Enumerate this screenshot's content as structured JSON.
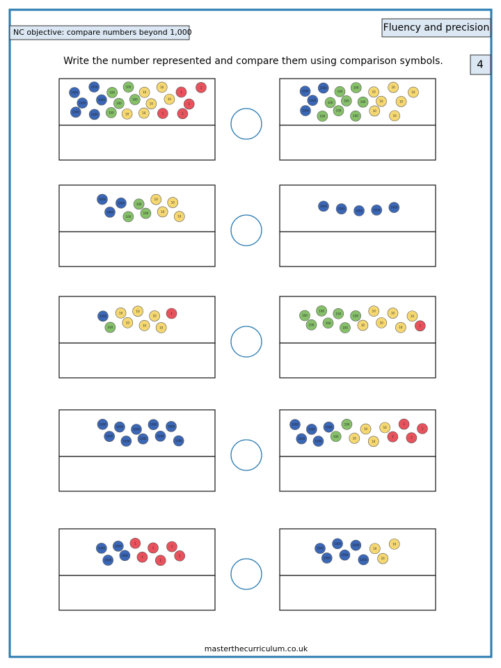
{
  "header": {
    "objective": "NC objective: compare numbers beyond 1,000",
    "section": "Fluency and precision",
    "page_number": "4"
  },
  "instruction": "Write the number represented and compare them using comparison symbols.",
  "questions": [
    {
      "left": {
        "counters": [
          1000,
          1000,
          1000,
          1000,
          1000,
          1000,
          100,
          100,
          100,
          100,
          100,
          10,
          10,
          10,
          10,
          10,
          10,
          1,
          1,
          1,
          1,
          1
        ]
      },
      "right": {
        "counters": [
          1000,
          1000,
          1000,
          1000,
          100,
          100,
          100,
          100,
          100,
          100,
          100,
          100,
          10,
          10,
          10,
          10,
          10,
          10,
          10
        ]
      }
    },
    {
      "left": {
        "counters": [
          1000,
          1000,
          1000,
          100,
          100,
          100,
          10,
          10,
          10,
          10
        ]
      },
      "right": {
        "counters": [
          1000,
          1000,
          1000,
          1000,
          1000
        ]
      }
    },
    {
      "left": {
        "counters": [
          1000,
          100,
          10,
          10,
          10,
          10,
          10,
          10,
          1
        ]
      },
      "right": {
        "counters": [
          100,
          100,
          100,
          100,
          100,
          100,
          100,
          10,
          10,
          10,
          10,
          10,
          10,
          1
        ]
      }
    },
    {
      "left": {
        "counters": [
          1000,
          1000,
          1000,
          1000,
          1000,
          1000,
          1000,
          1000,
          1000,
          1000
        ]
      },
      "right": {
        "counters": [
          1000,
          1000,
          1000,
          1000,
          1000,
          100,
          100,
          10,
          10,
          10,
          10,
          1,
          1,
          1,
          1
        ]
      }
    },
    {
      "left": {
        "counters": [
          1000,
          1000,
          1000,
          1000,
          1,
          1,
          1,
          1,
          1,
          1
        ]
      },
      "right": {
        "counters": [
          1000,
          1000,
          1000,
          1000,
          1000,
          1000,
          10,
          10,
          10
        ]
      }
    }
  ],
  "footer": "masterthecurriculum.co.uk"
}
